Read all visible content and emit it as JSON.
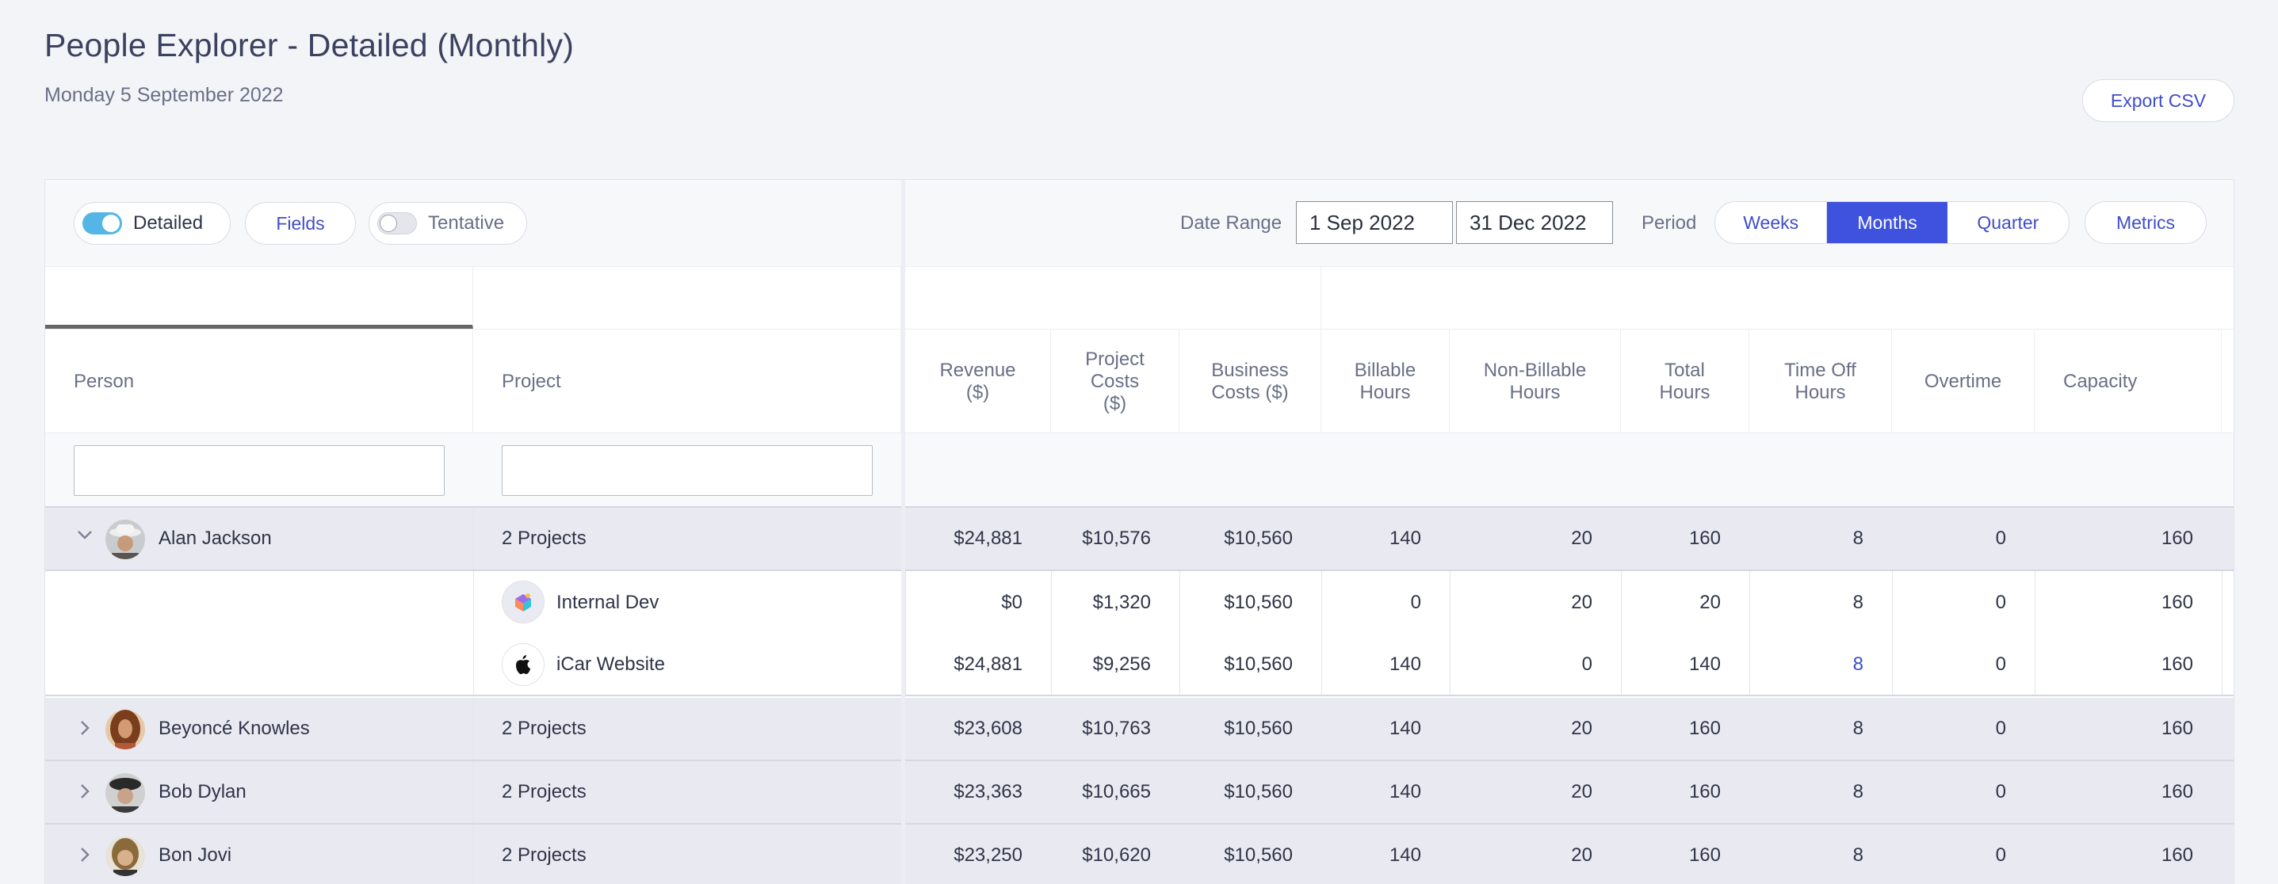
{
  "header": {
    "title": "People Explorer - Detailed (Monthly)",
    "date": "Monday 5 September 2022",
    "export_label": "Export CSV"
  },
  "toolbar": {
    "detailed_label": "Detailed",
    "fields_label": "Fields",
    "tentative_label": "Tentative",
    "date_range_label": "Date Range",
    "start_date": "1 Sep 2022",
    "end_date": "31 Dec 2022",
    "period_label": "Period",
    "period_options": [
      "Weeks",
      "Months",
      "Quarter"
    ],
    "period_selected": "Months",
    "metrics_label": "Metrics"
  },
  "columns": {
    "person": "Person",
    "project": "Project",
    "revenue": "Revenue ($)",
    "project_costs": "Project Costs ($)",
    "business_costs": "Business Costs ($)",
    "billable": "Billable Hours",
    "non_billable": "Non-Billable Hours",
    "total": "Total Hours",
    "time_off": "Time Off Hours",
    "overtime": "Overtime",
    "capacity": "Capacity"
  },
  "rows": {
    "alan": {
      "name": "Alan Jackson",
      "projects": "2 Projects",
      "revenue": "$24,881",
      "project_costs": "$10,576",
      "business_costs": "$10,560",
      "billable": "140",
      "non_billable": "20",
      "total": "160",
      "time_off": "8",
      "overtime": "0",
      "capacity": "160",
      "children": {
        "internal": {
          "project": "Internal Dev",
          "revenue": "$0",
          "project_costs": "$1,320",
          "business_costs": "$10,560",
          "billable": "0",
          "non_billable": "20",
          "total": "20",
          "time_off": "8",
          "overtime": "0",
          "capacity": "160"
        },
        "icar": {
          "project": "iCar Website",
          "revenue": "$24,881",
          "project_costs": "$9,256",
          "business_costs": "$10,560",
          "billable": "140",
          "non_billable": "0",
          "total": "140",
          "time_off": "8",
          "overtime": "0",
          "capacity": "160"
        }
      }
    },
    "beyonce": {
      "name": "Beyoncé Knowles",
      "projects": "2 Projects",
      "revenue": "$23,608",
      "project_costs": "$10,763",
      "business_costs": "$10,560",
      "billable": "140",
      "non_billable": "20",
      "total": "160",
      "time_off": "8",
      "overtime": "0",
      "capacity": "160"
    },
    "bob": {
      "name": "Bob Dylan",
      "projects": "2 Projects",
      "revenue": "$23,363",
      "project_costs": "$10,665",
      "business_costs": "$10,560",
      "billable": "140",
      "non_billable": "20",
      "total": "160",
      "time_off": "8",
      "overtime": "0",
      "capacity": "160"
    },
    "bon": {
      "name": "Bon Jovi",
      "projects": "2 Projects",
      "revenue": "$23,250",
      "project_costs": "$10,620",
      "business_costs": "$10,560",
      "billable": "140",
      "non_billable": "20",
      "total": "160",
      "time_off": "8",
      "overtime": "0",
      "capacity": "160"
    }
  },
  "colors": {
    "accent": "#3e52de",
    "toggle_on": "#53b6e6",
    "group_row_bg": "#e9eaf1"
  },
  "icons": {
    "expanded": "chevron-down-icon",
    "collapsed": "chevron-right-icon",
    "internal_dev": "colorful-cube-icon",
    "icar": "apple-icon"
  }
}
